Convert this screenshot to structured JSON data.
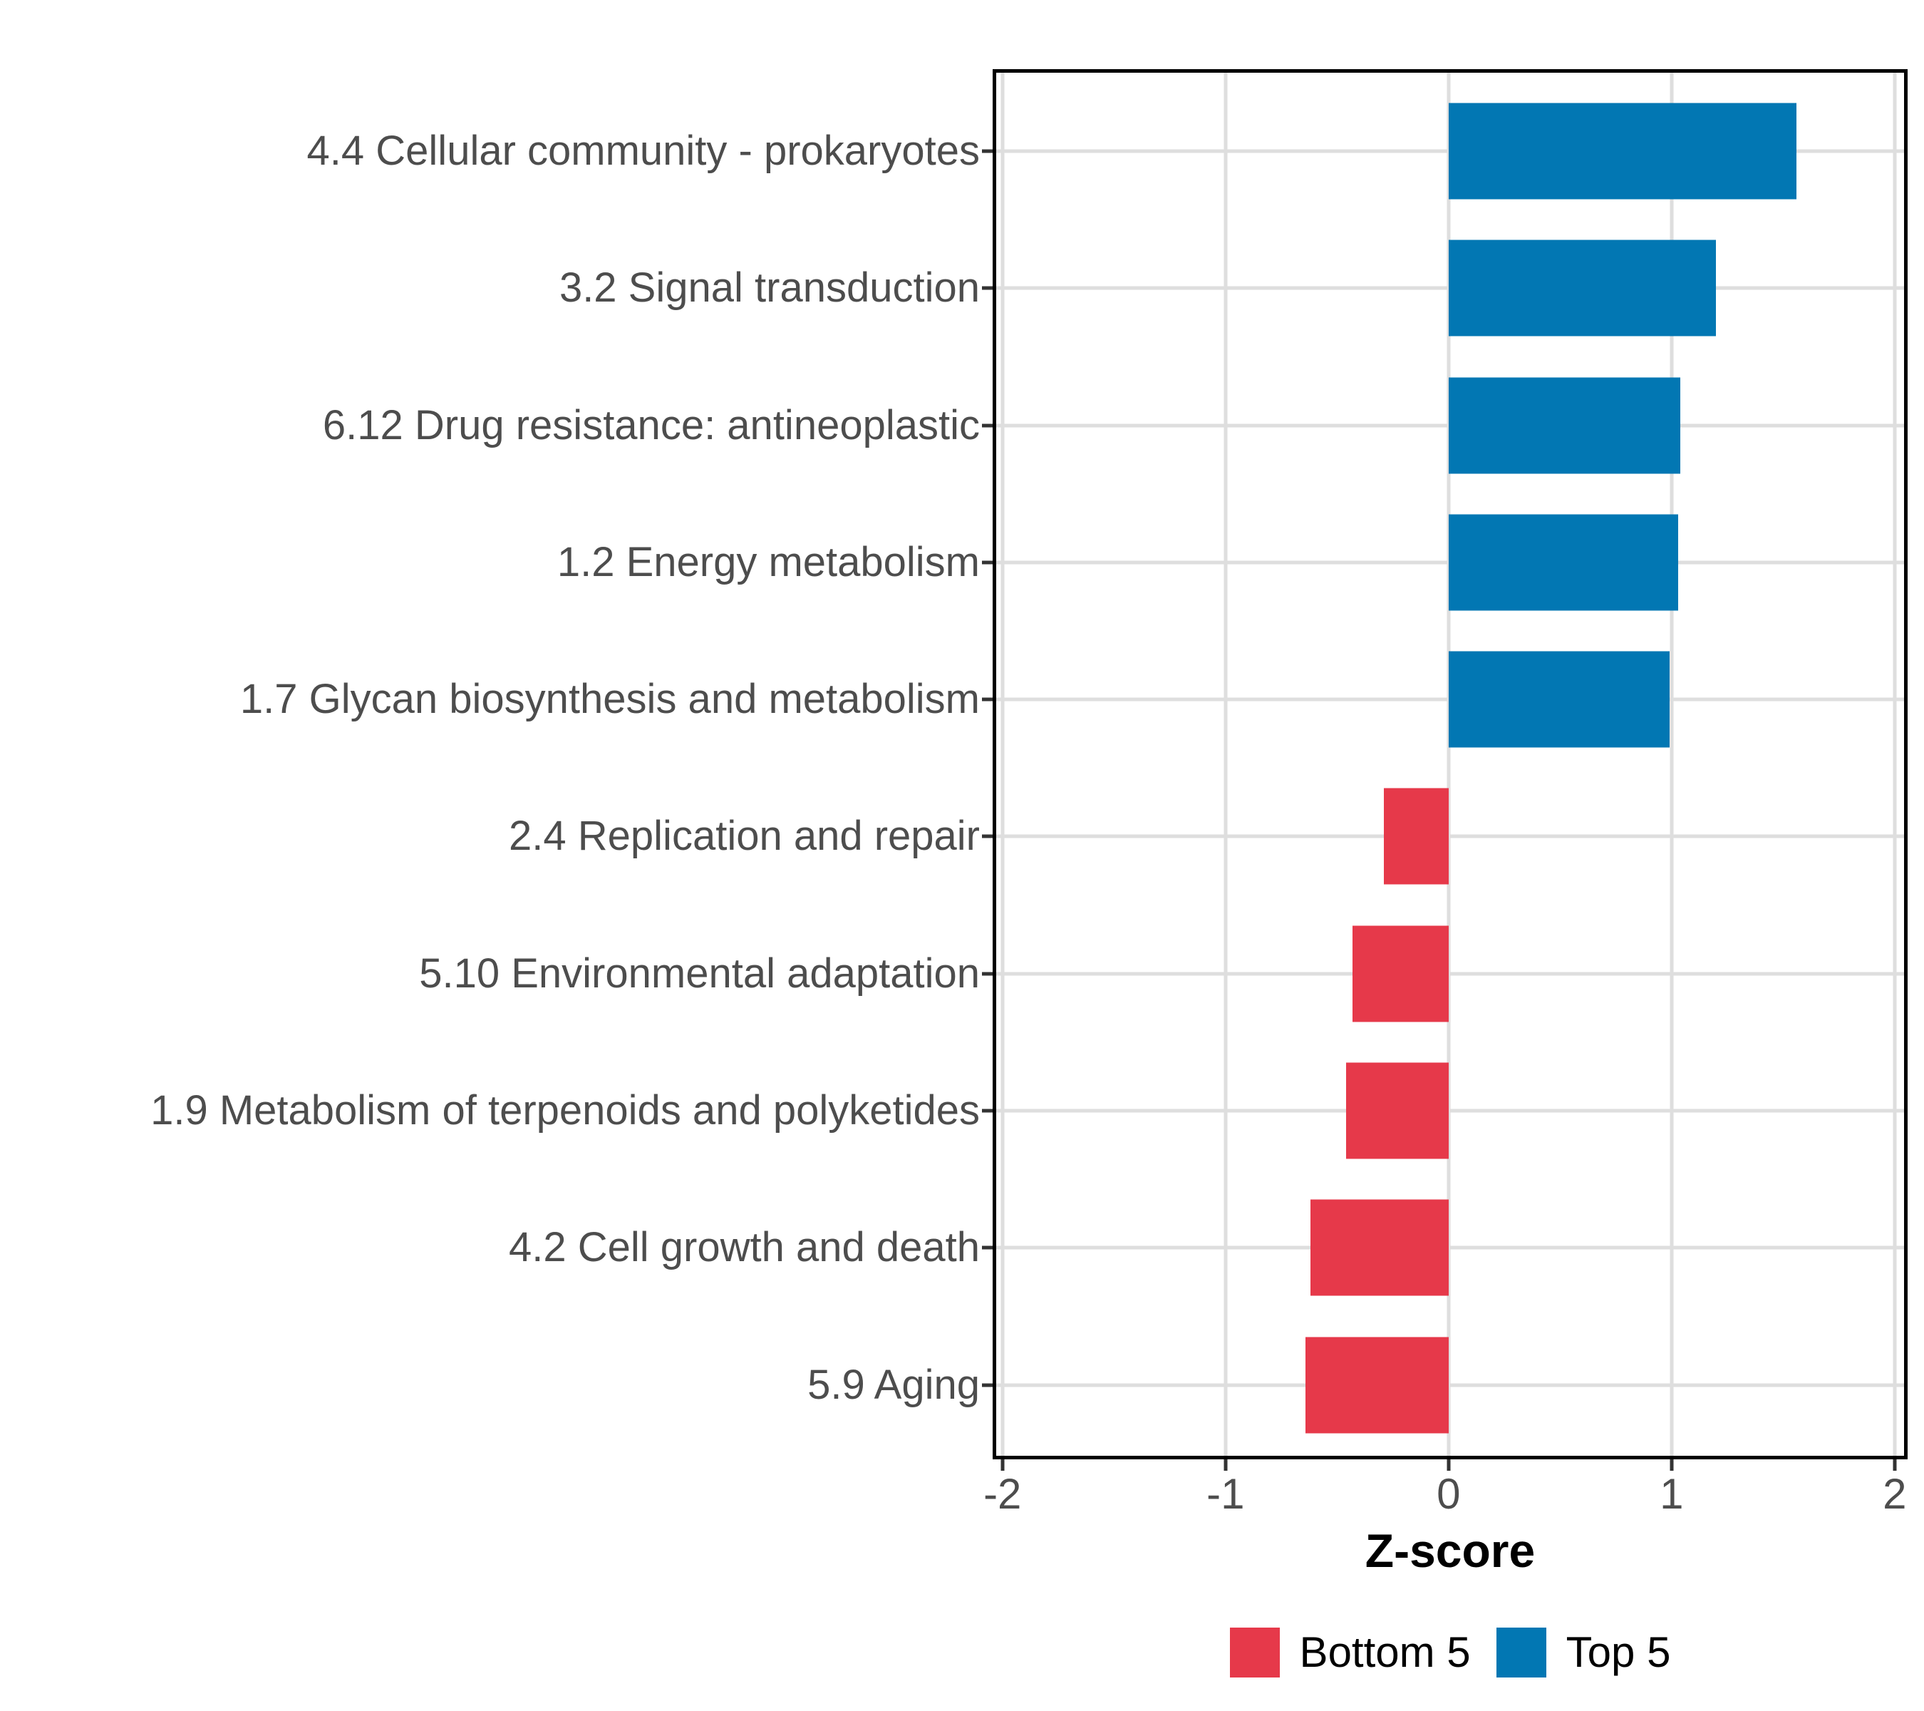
{
  "chart_data": {
    "type": "bar",
    "orientation": "horizontal",
    "title": "",
    "xlabel": "Z-score",
    "ylabel": "",
    "xlim": [
      -2.028,
      2.042
    ],
    "x_ticks": [
      -2,
      -1,
      0,
      1,
      2
    ],
    "x_tick_labels": [
      "-2",
      "-1",
      "0",
      "1",
      "2"
    ],
    "grid": true,
    "legend_position": "bottom",
    "categories": [
      "4.4 Cellular community - prokaryotes",
      "3.2 Signal transduction",
      "6.12 Drug resistance: antineoplastic",
      "1.2 Energy metabolism",
      "1.7 Glycan biosynthesis and metabolism",
      "2.4 Replication and repair",
      "5.10 Environmental adaptation",
      "1.9 Metabolism of terpenoids and polyketides",
      "4.2 Cell growth and death",
      "5.9 Aging"
    ],
    "values": [
      1.56,
      1.2,
      1.04,
      1.03,
      0.99,
      -0.29,
      -0.43,
      -0.46,
      -0.62,
      -0.64
    ],
    "groups": [
      "Top 5",
      "Top 5",
      "Top 5",
      "Top 5",
      "Top 5",
      "Bottom 5",
      "Bottom 5",
      "Bottom 5",
      "Bottom 5",
      "Bottom 5"
    ],
    "legend": [
      {
        "label": "Bottom 5",
        "color": "#E6394A"
      },
      {
        "label": "Top 5",
        "color": "#0277B3"
      }
    ],
    "colors": {
      "grid": "#DEDEDE",
      "panel_border": "#000000",
      "tick_mark": "#333333",
      "tick_text": "#4D4D4D",
      "category_text": "#4D4D4D",
      "axis_title": "#000000",
      "legend_text": "#000000",
      "background": "#FFFFFF"
    }
  }
}
